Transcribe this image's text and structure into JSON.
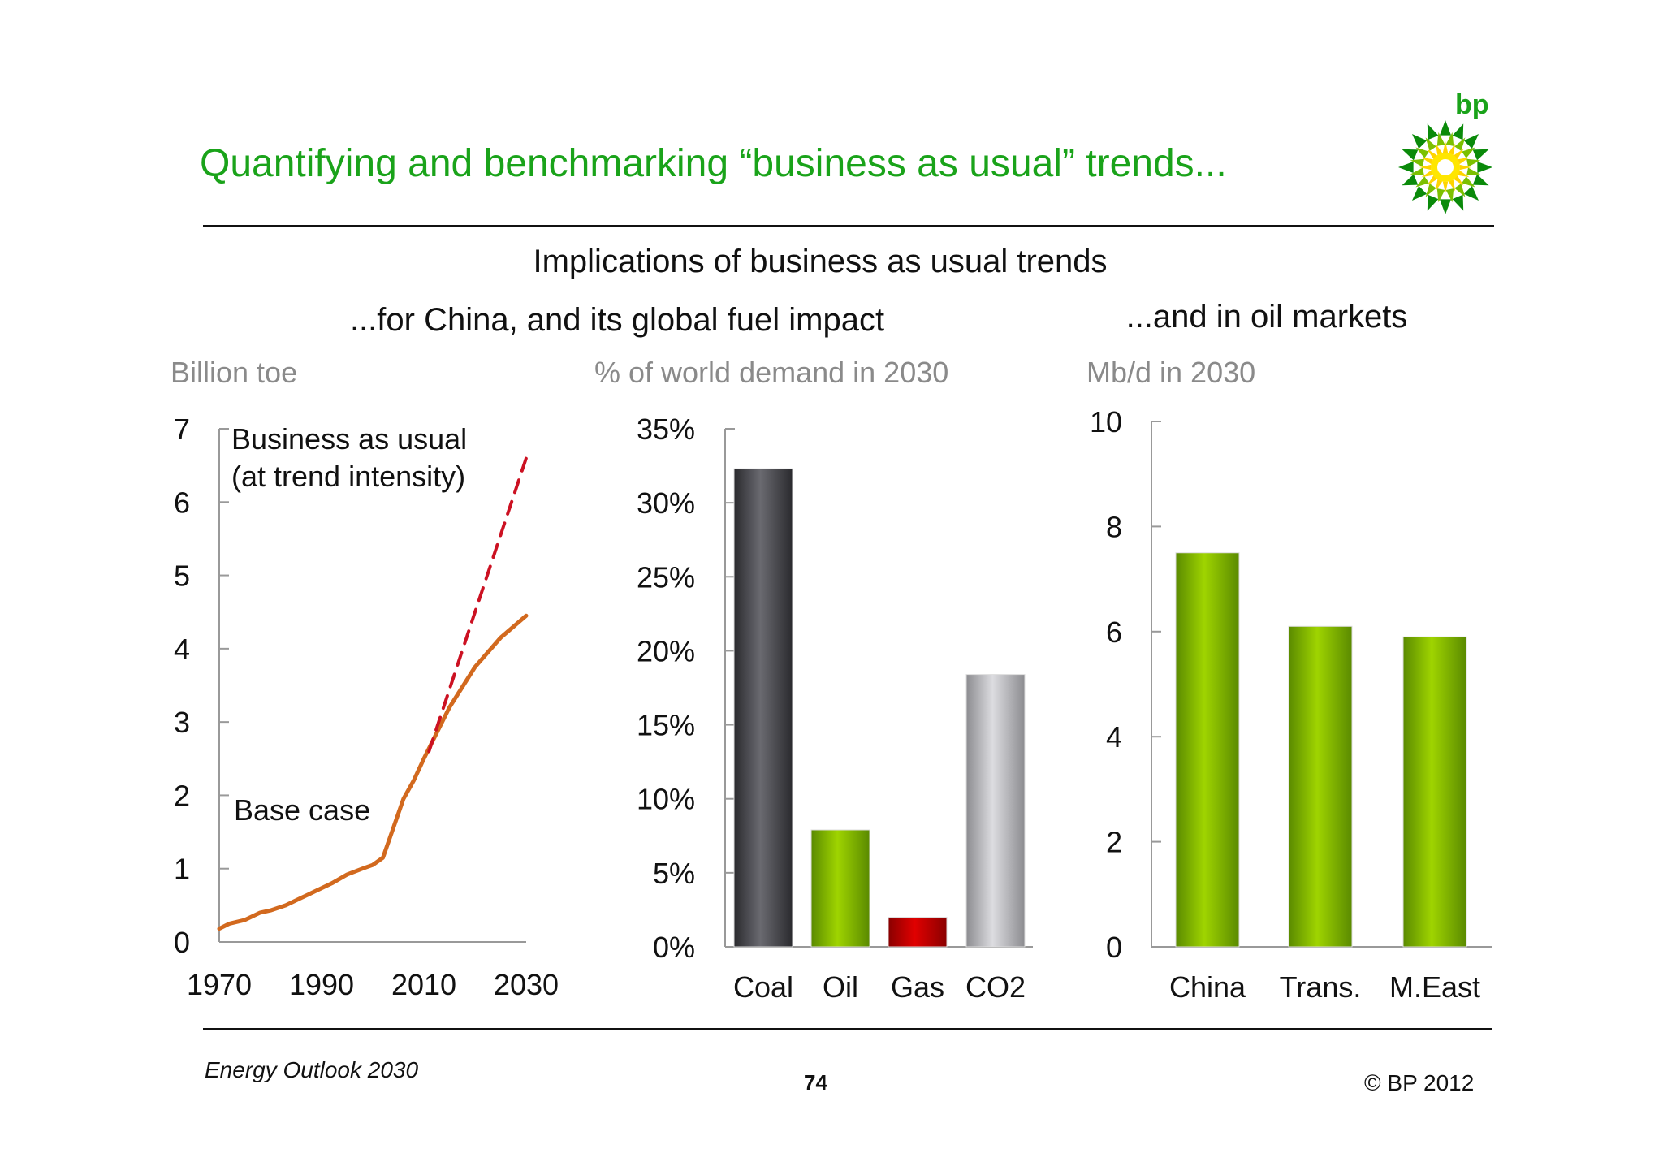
{
  "slide": {
    "title": "Quantifying and benchmarking “business as usual” trends...",
    "heading": "Implications of business as usual trends",
    "left_subheading": "...for China, and its global fuel impact",
    "right_subheading": "...and in oil markets",
    "footer_left": "Energy Outlook 2030",
    "page_number": "74",
    "copyright": "© BP 2012",
    "logo_text": "bp"
  },
  "colors": {
    "title": "#1aa31a",
    "base_case": "#d2691e",
    "business_as_usual": "#cc1122",
    "coal": "#4a4a50",
    "oil": "#8cc000",
    "gas": "#c80000",
    "co2": "#b8b8bc"
  },
  "chart_data": [
    {
      "type": "line",
      "unit_label": "Billion toe",
      "xlim": [
        1970,
        2030
      ],
      "ylim": [
        0,
        7
      ],
      "x_ticks": [
        "1970",
        "1990",
        "2010",
        "2030"
      ],
      "y_ticks": [
        "0",
        "1",
        "2",
        "3",
        "4",
        "5",
        "6",
        "7"
      ],
      "annotations": [
        "Business as usual",
        "(at trend intensity)",
        "Base case"
      ],
      "series": [
        {
          "name": "Base case",
          "style": "solid",
          "x": [
            1970,
            1972,
            1975,
            1978,
            1980,
            1983,
            1986,
            1989,
            1992,
            1995,
            1998,
            2000,
            2002,
            2004,
            2006,
            2008,
            2010,
            2015,
            2020,
            2025,
            2030
          ],
          "y": [
            0.18,
            0.25,
            0.3,
            0.4,
            0.43,
            0.5,
            0.6,
            0.7,
            0.8,
            0.92,
            1.0,
            1.05,
            1.15,
            1.55,
            1.95,
            2.2,
            2.5,
            3.2,
            3.75,
            4.15,
            4.45
          ]
        },
        {
          "name": "Business as usual (at trend intensity)",
          "style": "dashed",
          "x": [
            2011,
            2020,
            2030
          ],
          "y": [
            2.6,
            4.5,
            6.6
          ]
        }
      ]
    },
    {
      "type": "bar",
      "unit_label": "% of world demand in 2030",
      "categories": [
        "Coal",
        "Oil",
        "Gas",
        "CO2"
      ],
      "values": [
        32.3,
        7.9,
        2.0,
        18.4
      ],
      "ylim": [
        0,
        35
      ],
      "y_ticks": [
        "0%",
        "5%",
        "10%",
        "15%",
        "20%",
        "25%",
        "30%",
        "35%"
      ],
      "bar_colors": [
        "coal",
        "oil",
        "gas",
        "co2"
      ]
    },
    {
      "type": "bar",
      "unit_label": "Mb/d in 2030",
      "categories": [
        "China",
        "Trans.",
        "M.East"
      ],
      "values": [
        7.5,
        6.1,
        5.9
      ],
      "ylim": [
        0,
        10
      ],
      "y_ticks": [
        "0",
        "2",
        "4",
        "6",
        "8",
        "10"
      ],
      "bar_colors": [
        "oil",
        "oil",
        "oil"
      ]
    }
  ]
}
